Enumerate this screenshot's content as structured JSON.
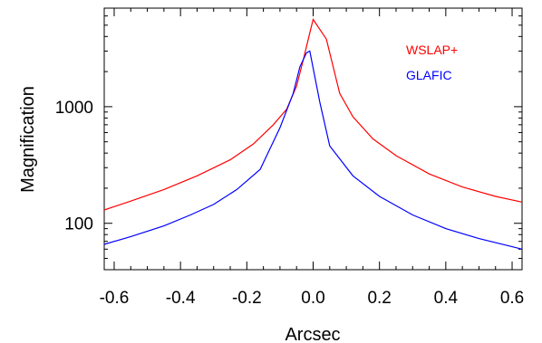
{
  "chart_data": {
    "type": "line",
    "title": "",
    "xlabel": "Arcsec",
    "ylabel": "Magnification",
    "xlim": [
      -0.63,
      0.63
    ],
    "ylim": [
      40,
      7000
    ],
    "yscale": "log",
    "grid": false,
    "legend_placement": "top-right",
    "x_ticks": [
      -0.6,
      -0.4,
      -0.2,
      0.0,
      0.2,
      0.4,
      0.6
    ],
    "x_tick_labels": [
      "-0.6",
      "-0.4",
      "-0.2",
      "0.0",
      "0.2",
      "0.4",
      "0.6"
    ],
    "y_ticks": [
      100,
      1000
    ],
    "y_tick_labels": [
      "100",
      "1000"
    ],
    "series": [
      {
        "name": "WSLAP+",
        "color": "#ff0000",
        "x": [
          -0.63,
          -0.55,
          -0.45,
          -0.35,
          -0.25,
          -0.18,
          -0.12,
          -0.08,
          -0.05,
          -0.03,
          -0.01,
          0.0,
          0.04,
          0.08,
          0.12,
          0.18,
          0.25,
          0.35,
          0.45,
          0.55,
          0.63
        ],
        "y": [
          130,
          155,
          195,
          255,
          350,
          480,
          700,
          950,
          1500,
          2500,
          4300,
          5600,
          3800,
          1300,
          820,
          530,
          380,
          265,
          205,
          170,
          152
        ]
      },
      {
        "name": "GLAFIC",
        "color": "#0000ff",
        "x": [
          -0.63,
          -0.55,
          -0.45,
          -0.37,
          -0.3,
          -0.23,
          -0.16,
          -0.1,
          -0.06,
          -0.04,
          -0.02,
          -0.01,
          0.02,
          0.05,
          0.12,
          0.2,
          0.3,
          0.4,
          0.5,
          0.6,
          0.63
        ],
        "y": [
          66,
          77,
          95,
          118,
          145,
          195,
          290,
          660,
          1300,
          2200,
          2900,
          3000,
          1100,
          460,
          255,
          170,
          118,
          90,
          74,
          63,
          60
        ]
      }
    ]
  }
}
